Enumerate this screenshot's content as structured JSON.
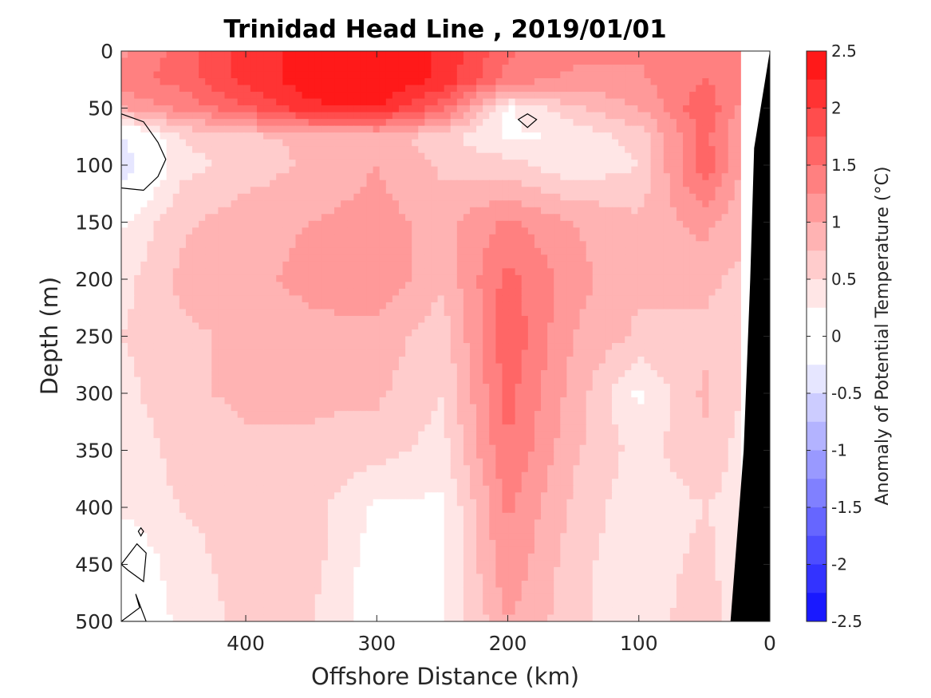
{
  "chart_data": {
    "type": "heatmap",
    "title": "Trinidad Head Line , 2019/01/01",
    "xlabel": "Offshore Distance (km)",
    "ylabel": "Depth (m)",
    "xlim": [
      495,
      0
    ],
    "ylim": [
      0,
      500
    ],
    "xticks": [
      "400",
      "300",
      "200",
      "100",
      "0"
    ],
    "yticks": [
      "0",
      "50",
      "100",
      "150",
      "200",
      "250",
      "300",
      "350",
      "400",
      "450",
      "500"
    ],
    "colorbar": {
      "label": "Anomaly of Potential Temperature (°C)",
      "ticks": [
        "2.5",
        "2",
        "1.5",
        "1",
        "0.5",
        "0",
        "-0.5",
        "-1",
        "-1.5",
        "-2",
        "-2.5"
      ],
      "range": [
        -2.5,
        2.5
      ],
      "step": 0.25,
      "colors": {
        "positive_max": "#ff0000",
        "neutral": "#ffffff",
        "negative_max": "#0000ff"
      }
    },
    "grid": {
      "x": [
        495,
        450,
        400,
        350,
        300,
        250,
        200,
        150,
        100,
        50,
        22
      ],
      "z": [
        0,
        25,
        50,
        75,
        100,
        150,
        200,
        250,
        300,
        350,
        400,
        450,
        500
      ],
      "values": [
        [
          1.2,
          1.6,
          2.1,
          2.35,
          2.45,
          2.2,
          1.55,
          1.3,
          1.3,
          1.5,
          1.4
        ],
        [
          1.4,
          1.6,
          2.1,
          2.4,
          2.5,
          2.2,
          1.4,
          1.2,
          1.2,
          1.5,
          1.4
        ],
        [
          1.0,
          1.3,
          1.7,
          2.2,
          2.25,
          1.6,
          0.2,
          0.7,
          1.0,
          1.7,
          1.2
        ],
        [
          -0.3,
          0.5,
          0.7,
          0.8,
          0.9,
          0.6,
          0.2,
          0.3,
          0.6,
          1.6,
          1.0
        ],
        [
          -0.45,
          0.4,
          0.6,
          0.8,
          1.0,
          0.7,
          0.6,
          0.3,
          0.5,
          1.7,
          1.0
        ],
        [
          0.2,
          0.7,
          0.9,
          1.0,
          1.1,
          0.9,
          1.3,
          1.0,
          0.8,
          1.1,
          0.8
        ],
        [
          0.4,
          0.8,
          0.9,
          1.1,
          1.2,
          0.8,
          1.6,
          1.1,
          0.8,
          0.8,
          0.7
        ],
        [
          0.5,
          0.7,
          0.8,
          0.9,
          0.9,
          0.6,
          1.7,
          1.0,
          0.7,
          0.7,
          0.6
        ],
        [
          0.4,
          0.7,
          0.8,
          0.8,
          0.8,
          0.5,
          1.6,
          0.9,
          0.2,
          0.8,
          0.5
        ],
        [
          0.3,
          0.6,
          0.7,
          0.7,
          0.6,
          0.4,
          1.5,
          0.8,
          0.4,
          0.7,
          0.4
        ],
        [
          0.3,
          0.5,
          0.6,
          0.6,
          0.2,
          0.2,
          1.3,
          0.7,
          0.3,
          0.5,
          0.4
        ],
        [
          -0.05,
          0.4,
          0.6,
          0.6,
          0.1,
          0.2,
          1.2,
          0.6,
          0.3,
          0.6,
          0.3
        ],
        [
          -0.05,
          0.3,
          0.6,
          0.5,
          0.1,
          0.2,
          1.0,
          0.6,
          0.3,
          0.7,
          0.3
        ]
      ]
    },
    "contour_levels": [
      0
    ],
    "bathymetry_color": "#000000"
  }
}
